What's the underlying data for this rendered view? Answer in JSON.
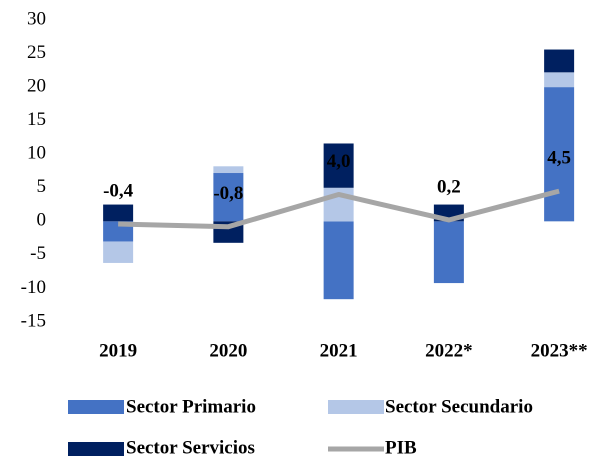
{
  "chart_data": {
    "type": "bar_line",
    "categories": [
      "2019",
      "2020",
      "2021",
      "2022*",
      "2023**"
    ],
    "series": [
      {
        "name": "Sector Primario",
        "color": "#4472c4",
        "values": [
          -3,
          7.2,
          -11.6,
          -9.2,
          20
        ]
      },
      {
        "name": "Sector Secundario",
        "color": "#b4c7e7",
        "values": [
          -3.2,
          1,
          5,
          0,
          2.2
        ]
      },
      {
        "name": "Sector Servicios",
        "color": "#002060",
        "values": [
          2.5,
          -3.2,
          6.6,
          2.5,
          3.4
        ]
      },
      {
        "name": "PIB",
        "color": "#a6a6a6",
        "type": "line",
        "values": [
          -0.4,
          -0.8,
          4.0,
          0.2,
          4.5
        ],
        "value_labels": [
          "-0,4",
          "-0,8",
          "4,0",
          "0,2",
          "4,5"
        ]
      }
    ],
    "ylim": [
      -15,
      30
    ],
    "yticks": [
      -15,
      -10,
      -5,
      0,
      5,
      10,
      15,
      20,
      25,
      30
    ],
    "grid": false
  }
}
